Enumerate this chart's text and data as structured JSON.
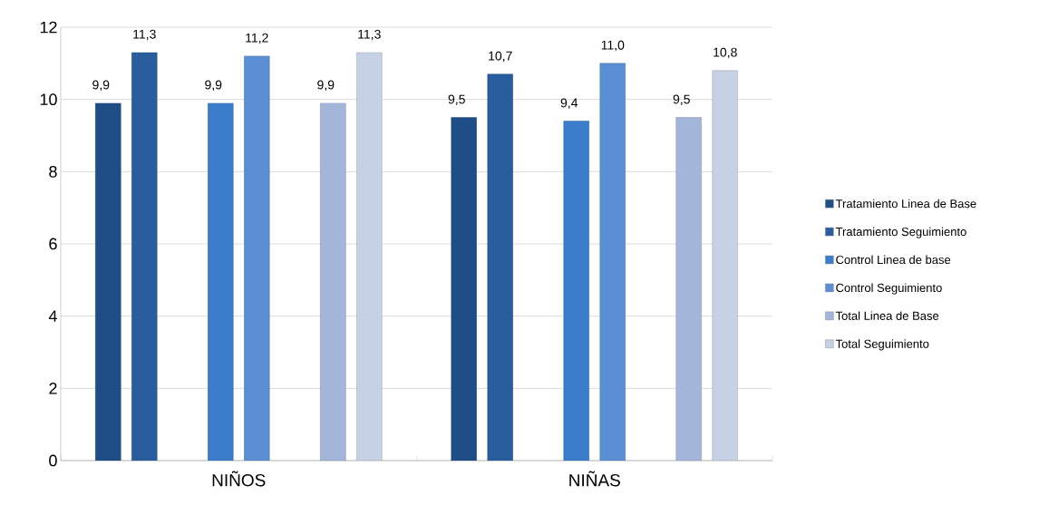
{
  "chart_data": {
    "type": "bar",
    "categories": [
      "NIÑOS",
      "NIÑAS"
    ],
    "series": [
      {
        "name": "Tratamiento Linea de Base",
        "color": "#1f4e86",
        "values": [
          9.9,
          9.5
        ],
        "value_labels": [
          "9,9",
          "9,5"
        ]
      },
      {
        "name": "Tratamiento Seguimiento",
        "color": "#2a5d9e",
        "values": [
          11.3,
          10.7
        ],
        "value_labels": [
          "11,3",
          "10,7"
        ]
      },
      {
        "name": "Control Linea de base",
        "color": "#3b7ccb",
        "values": [
          9.9,
          9.4
        ],
        "value_labels": [
          "9,9",
          "9,4"
        ]
      },
      {
        "name": "Control Seguimiento",
        "color": "#5b8fd3",
        "values": [
          11.2,
          11.0
        ],
        "value_labels": [
          "11,2",
          "11,0"
        ]
      },
      {
        "name": "Total Linea de Base",
        "color": "#a3b5d9",
        "values": [
          9.9,
          9.5
        ],
        "value_labels": [
          "9,9",
          "9,5"
        ]
      },
      {
        "name": "Total Seguimiento",
        "color": "#c7d1e6",
        "values": [
          11.3,
          10.8
        ],
        "value_labels": [
          "11,3",
          "10,8"
        ]
      }
    ],
    "ylim": [
      0,
      12
    ],
    "yticks": [
      0,
      2,
      4,
      6,
      8,
      10,
      12
    ],
    "grid": "y",
    "legend": "right"
  }
}
